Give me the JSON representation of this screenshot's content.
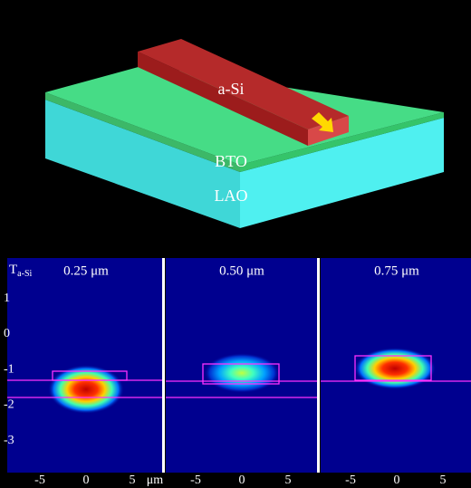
{
  "schematic": {
    "labels": [
      "a-Si",
      "BTO",
      "LAO"
    ]
  },
  "modes": {
    "symbol": "T",
    "symbol_subscript": "a-Si",
    "panels": [
      {
        "thickness": "0.25 μm"
      },
      {
        "thickness": "0.50 μm"
      },
      {
        "thickness": "0.75 μm"
      }
    ],
    "yticks": [
      1,
      0,
      -1,
      -2,
      -3
    ],
    "xticks": [
      -5,
      0,
      5
    ],
    "x_unit": "μm"
  }
}
